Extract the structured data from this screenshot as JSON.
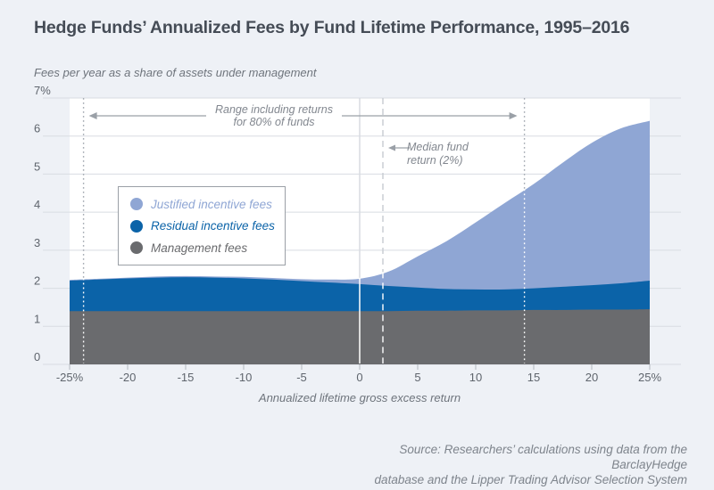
{
  "page": {
    "title": "Hedge Funds’ Annualized Fees by Fund Lifetime Performance, 1995–2016",
    "subtitle": "Fees per year as a share of assets under management",
    "source_line1": "Source: Researchers’ calculations using data from the BarclayHedge",
    "source_line2": "database and the Lipper Trading Advisor Selection System database"
  },
  "legend": {
    "items": [
      {
        "label": "Justified incentive fees",
        "color": "#8fa6d4"
      },
      {
        "label": "Residual incentive fees",
        "color": "#0b63a8"
      },
      {
        "label": "Management fees",
        "color": "#6a6b6e"
      }
    ]
  },
  "chart_data": {
    "type": "area",
    "stacked": true,
    "title": "Hedge Funds’ Annualized Fees by Fund Lifetime Performance, 1995–2016",
    "xlabel": "Annualized lifetime gross excess return",
    "ylabel": "Fees per year as a share of assets under management",
    "x_range": [
      -25,
      25
    ],
    "y_range": [
      0,
      7
    ],
    "grid": true,
    "legend_position": "inside-left",
    "x_tick_values": [
      -25,
      -20,
      -15,
      -10,
      -5,
      0,
      5,
      10,
      15,
      20,
      25
    ],
    "x_tick_labels": [
      "-25%",
      "-20",
      "-15",
      "-10",
      "-5",
      "0",
      "5",
      "10",
      "15",
      "20",
      "25%"
    ],
    "y_tick_values": [
      7,
      6,
      5,
      4,
      3,
      2,
      1,
      0
    ],
    "y_tick_labels": [
      "7%",
      "6",
      "5",
      "4",
      "3",
      "2",
      "1",
      "0"
    ],
    "x": [
      -25,
      -22.5,
      -20,
      -17.5,
      -15,
      -12.5,
      -10,
      -7.5,
      -5,
      -2.5,
      0,
      2.5,
      5,
      7.5,
      10,
      12.5,
      15,
      17.5,
      20,
      22.5,
      25
    ],
    "series": [
      {
        "name": "Management fees",
        "color": "#6a6b6e",
        "values": [
          1.4,
          1.4,
          1.4,
          1.4,
          1.4,
          1.4,
          1.4,
          1.4,
          1.4,
          1.4,
          1.4,
          1.4,
          1.41,
          1.41,
          1.42,
          1.42,
          1.43,
          1.43,
          1.44,
          1.44,
          1.45
        ]
      },
      {
        "name": "Residual incentive fees",
        "color": "#0b63a8",
        "values": [
          0.8,
          0.83,
          0.86,
          0.88,
          0.89,
          0.88,
          0.86,
          0.83,
          0.79,
          0.75,
          0.71,
          0.66,
          0.61,
          0.57,
          0.55,
          0.55,
          0.57,
          0.61,
          0.64,
          0.69,
          0.75
        ]
      },
      {
        "name": "Justified incentive fees",
        "color": "#8fa6d4",
        "values": [
          0.02,
          0.02,
          0.02,
          0.03,
          0.03,
          0.03,
          0.04,
          0.04,
          0.05,
          0.08,
          0.14,
          0.38,
          0.82,
          1.26,
          1.76,
          2.27,
          2.74,
          3.26,
          3.74,
          4.07,
          4.2
        ]
      }
    ],
    "annotations": {
      "range_band": {
        "x_from": -23.8,
        "x_to": 14.2,
        "label_line1": "Range including returns",
        "label_line2": "for 80% of funds"
      },
      "median_line": {
        "x": 2,
        "label_line1": "Median fund",
        "label_line2": "return (2%)"
      },
      "zero_line": {
        "x": 0
      }
    }
  },
  "colors": {
    "page_bg": "#eef1f6",
    "plot_bg": "#ffffff",
    "grid": "#d8dce2",
    "tick": "#b4b9c0",
    "tick_label": "#5f656d",
    "arrow": "#9aa0a7",
    "dotted_line": "#a6acb4",
    "dashed_line": "#c6cbd1",
    "zero_line": "#d8dce1",
    "line_over_fill": "#ffffff"
  }
}
